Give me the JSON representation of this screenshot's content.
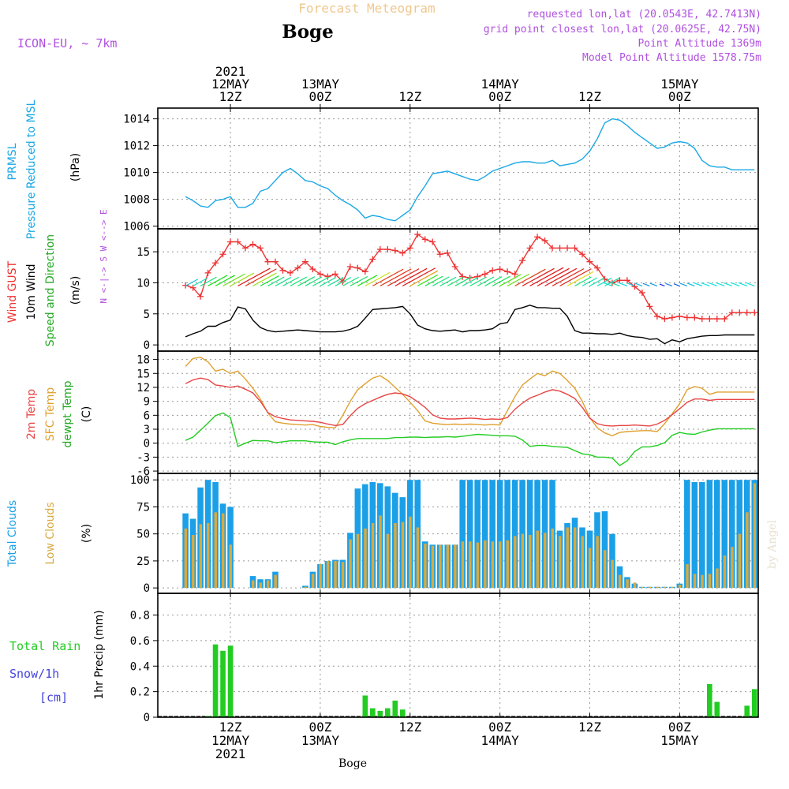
{
  "header": {
    "subtitle": "Forecast Meteogram",
    "station": "Boge",
    "model": "ICON-EU, ~ 7km",
    "requested": "requested lon,lat (20.0543E, 42.7413N)",
    "grid_point": "grid point closest lon,lat (20.0625E, 42.75N)",
    "point_altitude": "Point Altitude 1369m",
    "model_altitude": "Model Point Altitude 1578.75m",
    "footer_label": "Boge",
    "watermark": "by Angel"
  },
  "colors": {
    "pressure": "#1ba8e6",
    "gust": "#ee3333",
    "wind": "#000000",
    "temp2m": "#e84444",
    "sfc": "#e0a030",
    "dewpt": "#22cc22",
    "total_clouds": "#1ba0e8",
    "low_clouds": "#d8aa40",
    "rain": "#22cc22",
    "snow": "#4444dd",
    "purple": "#b050e0"
  },
  "chart_data": [
    {
      "type": "line",
      "name": "pressure",
      "ylabel": [
        "PRMSL",
        "Pressure Reduced to MSL",
        "(hPa)"
      ],
      "yticks": [
        1006,
        1008,
        1010,
        1012,
        1014
      ],
      "ylim": [
        1005.8,
        1014.8
      ],
      "x_hours": [
        0,
        1,
        2,
        3,
        4,
        5,
        6,
        7,
        8,
        9,
        10,
        11,
        12,
        13,
        14,
        15,
        16,
        17,
        18,
        19,
        20,
        21,
        22,
        23,
        24,
        25,
        26,
        27,
        28,
        29,
        30,
        31,
        32,
        33,
        34,
        35,
        36,
        37,
        38,
        39,
        40,
        41,
        42,
        43,
        44,
        45,
        46,
        47,
        48,
        49,
        50,
        51,
        52,
        53,
        54,
        55,
        56,
        57,
        58,
        59,
        60,
        61,
        62,
        63,
        64,
        65,
        66,
        67,
        68,
        69,
        70,
        71,
        72,
        73,
        74,
        75,
        76
      ],
      "values": [
        1008.2,
        1007.9,
        1007.5,
        1007.4,
        1007.9,
        1008.0,
        1008.2,
        1007.4,
        1007.4,
        1007.7,
        1008.6,
        1008.8,
        1009.4,
        1010.0,
        1010.3,
        1009.9,
        1009.4,
        1009.3,
        1009.0,
        1008.8,
        1008.3,
        1007.9,
        1007.6,
        1007.2,
        1006.6,
        1006.8,
        1006.7,
        1006.5,
        1006.4,
        1006.8,
        1007.2,
        1008.2,
        1009.0,
        1009.9,
        1010.0,
        1010.1,
        1009.9,
        1009.7,
        1009.5,
        1009.4,
        1009.7,
        1010.1,
        1010.3,
        1010.5,
        1010.7,
        1010.8,
        1010.8,
        1010.7,
        1010.7,
        1010.9,
        1010.5,
        1010.6,
        1010.7,
        1011.0,
        1011.6,
        1012.5,
        1013.7,
        1014.0,
        1013.9,
        1013.5,
        1013.0,
        1012.6,
        1012.2,
        1011.8,
        1011.9,
        1012.2,
        1012.3,
        1012.2,
        1011.8,
        1010.9,
        1010.5,
        1010.4,
        1010.4,
        1010.2,
        1010.2,
        1010.2,
        1010.2
      ]
    },
    {
      "type": "line",
      "name": "wind",
      "ylabel": [
        "Wind GUST",
        "10m Wind",
        "Speed and Direction",
        "(m/s)"
      ],
      "compass": "N <-|-> S  W <--> E",
      "yticks": [
        0,
        5,
        10,
        15
      ],
      "ylim": [
        -1,
        18.7
      ],
      "x_hours": [
        0,
        1,
        2,
        3,
        4,
        5,
        6,
        7,
        8,
        9,
        10,
        11,
        12,
        13,
        14,
        15,
        16,
        17,
        18,
        19,
        20,
        21,
        22,
        23,
        24,
        25,
        26,
        27,
        28,
        29,
        30,
        31,
        32,
        33,
        34,
        35,
        36,
        37,
        38,
        39,
        40,
        41,
        42,
        43,
        44,
        45,
        46,
        47,
        48,
        49,
        50,
        51,
        52,
        53,
        54,
        55,
        56,
        57,
        58,
        59,
        60,
        61,
        62,
        63,
        64,
        65,
        66,
        67,
        68,
        69,
        70,
        71,
        72,
        73,
        74,
        75,
        76
      ],
      "gust": [
        9.6,
        9.2,
        7.8,
        11.6,
        13.2,
        14.6,
        16.6,
        16.6,
        15.6,
        16.2,
        15.6,
        13.4,
        13.4,
        12.0,
        11.6,
        12.4,
        13.4,
        12.2,
        11.4,
        11.0,
        11.4,
        10.2,
        12.6,
        12.4,
        11.8,
        13.8,
        15.4,
        15.4,
        15.2,
        14.8,
        15.6,
        17.8,
        17.0,
        16.6,
        14.6,
        14.8,
        12.6,
        11.0,
        10.8,
        11.0,
        11.4,
        12.0,
        12.2,
        11.8,
        11.4,
        13.6,
        15.6,
        17.4,
        16.8,
        15.6,
        15.6,
        15.6,
        15.6,
        14.6,
        13.4,
        12.4,
        10.6,
        10.0,
        10.4,
        10.4,
        9.4,
        8.4,
        6.2,
        4.6,
        4.2,
        4.4,
        4.6,
        4.4,
        4.4,
        4.2,
        4.2,
        4.2,
        4.2,
        5.2,
        5.2,
        5.2,
        5.2
      ],
      "wind10m": [
        1.3,
        1.8,
        2.2,
        3.0,
        3.0,
        3.6,
        4.0,
        6.1,
        5.8,
        4.0,
        2.8,
        2.3,
        2.1,
        2.2,
        2.3,
        2.4,
        2.3,
        2.2,
        2.1,
        2.1,
        2.1,
        2.2,
        2.5,
        3.0,
        4.3,
        5.7,
        5.8,
        5.9,
        6.0,
        6.2,
        5.0,
        3.2,
        2.6,
        2.3,
        2.2,
        2.3,
        2.4,
        2.1,
        2.3,
        2.3,
        2.4,
        2.6,
        3.4,
        3.6,
        5.7,
        6.0,
        6.4,
        6.0,
        6.0,
        5.9,
        5.9,
        4.6,
        2.3,
        1.9,
        1.9,
        1.8,
        1.8,
        1.7,
        1.9,
        1.5,
        1.3,
        1.2,
        0.9,
        1.0,
        0.2,
        0.8,
        0.5,
        1.0,
        1.2,
        1.4,
        1.5,
        1.5,
        1.6,
        1.6,
        1.6,
        1.6,
        1.6
      ]
    },
    {
      "type": "line",
      "name": "temperature",
      "ylabel": [
        "2m Temp",
        "SFC Temp",
        "dewpt Temp",
        "(C)"
      ],
      "yticks": [
        -6,
        -3,
        0,
        3,
        6,
        9,
        12,
        15,
        18
      ],
      "ylim": [
        -6.5,
        19.8
      ],
      "x_hours": [
        0,
        1,
        2,
        3,
        4,
        5,
        6,
        7,
        8,
        9,
        10,
        11,
        12,
        13,
        14,
        15,
        16,
        17,
        18,
        19,
        20,
        21,
        22,
        23,
        24,
        25,
        26,
        27,
        28,
        29,
        30,
        31,
        32,
        33,
        34,
        35,
        36,
        37,
        38,
        39,
        40,
        41,
        42,
        43,
        44,
        45,
        46,
        47,
        48,
        49,
        50,
        51,
        52,
        53,
        54,
        55,
        56,
        57,
        58,
        59,
        60,
        61,
        62,
        63,
        64,
        65,
        66,
        67,
        68,
        69,
        70,
        71,
        72,
        73,
        74,
        75,
        76
      ],
      "temp2m": [
        12.8,
        13.6,
        14.0,
        13.7,
        12.5,
        12.3,
        12.0,
        12.3,
        11.6,
        10.8,
        9.0,
        6.6,
        5.7,
        5.3,
        5.0,
        4.9,
        4.8,
        4.7,
        4.5,
        4.1,
        3.8,
        4.0,
        5.9,
        7.5,
        8.5,
        9.2,
        9.9,
        10.5,
        10.8,
        10.6,
        10.0,
        8.9,
        7.7,
        6.1,
        5.4,
        5.2,
        5.2,
        5.3,
        5.4,
        5.3,
        5.1,
        5.2,
        5.1,
        5.5,
        7.3,
        8.6,
        9.7,
        10.3,
        11.0,
        11.5,
        11.2,
        10.5,
        9.6,
        7.7,
        5.4,
        4.2,
        3.8,
        3.7,
        3.8,
        3.8,
        3.9,
        3.8,
        3.7,
        4.1,
        4.9,
        6.1,
        7.4,
        8.8,
        9.5,
        9.5,
        9.2,
        9.4,
        9.4,
        9.4,
        9.4,
        9.4,
        9.4
      ],
      "sfc": [
        16.5,
        18.2,
        18.5,
        17.5,
        15.5,
        15.9,
        15.0,
        15.5,
        13.8,
        11.8,
        9.5,
        6.5,
        4.6,
        4.3,
        4.1,
        4.0,
        3.9,
        4.0,
        3.6,
        3.4,
        3.3,
        6.0,
        9.0,
        11.5,
        12.8,
        14.0,
        14.5,
        13.5,
        12.0,
        10.5,
        8.8,
        7.0,
        4.8,
        4.3,
        4.1,
        4.0,
        4.1,
        4.0,
        4.1,
        4.0,
        3.9,
        4.0,
        3.9,
        7.0,
        10.0,
        12.5,
        13.8,
        15.0,
        14.5,
        15.5,
        15.0,
        13.5,
        11.8,
        9.0,
        5.5,
        3.3,
        2.2,
        1.6,
        2.3,
        2.5,
        2.6,
        2.7,
        2.7,
        2.5,
        4.2,
        6.3,
        8.5,
        11.5,
        12.2,
        11.8,
        10.5,
        11.0,
        11.0,
        11.0,
        11.0,
        11.0,
        11.0
      ],
      "dewpt": [
        0.6,
        1.3,
        2.8,
        4.3,
        5.9,
        6.5,
        5.5,
        -0.7,
        0.0,
        0.6,
        0.5,
        0.5,
        0.1,
        0.3,
        0.5,
        0.5,
        0.5,
        0.3,
        0.2,
        0.2,
        -0.3,
        0.3,
        0.7,
        1.0,
        1.0,
        1.0,
        1.0,
        1.0,
        1.2,
        1.2,
        1.3,
        1.3,
        1.2,
        1.3,
        1.3,
        1.4,
        1.3,
        1.5,
        1.7,
        1.9,
        1.8,
        1.7,
        1.6,
        1.6,
        1.5,
        0.7,
        -0.7,
        -0.5,
        -0.5,
        -0.7,
        -0.8,
        -0.9,
        -1.6,
        -2.3,
        -2.5,
        -3.0,
        -3.0,
        -3.2,
        -4.8,
        -3.8,
        -1.8,
        -0.8,
        -0.8,
        -0.5,
        0.1,
        1.7,
        2.3,
        2.0,
        1.9,
        2.4,
        2.8,
        3.1,
        3.1,
        3.1,
        3.1,
        3.1,
        3.1
      ]
    },
    {
      "type": "bar",
      "name": "clouds",
      "ylabel": [
        "Total Clouds",
        "Low Clouds",
        "(%)"
      ],
      "yticks": [
        0,
        25,
        50,
        75,
        100
      ],
      "ylim": [
        -5,
        106
      ],
      "x_hours": [
        0,
        1,
        2,
        3,
        4,
        5,
        6,
        7,
        8,
        9,
        10,
        11,
        12,
        13,
        14,
        15,
        16,
        17,
        18,
        19,
        20,
        21,
        22,
        23,
        24,
        25,
        26,
        27,
        28,
        29,
        30,
        31,
        32,
        33,
        34,
        35,
        36,
        37,
        38,
        39,
        40,
        41,
        42,
        43,
        44,
        45,
        46,
        47,
        48,
        49,
        50,
        51,
        52,
        53,
        54,
        55,
        56,
        57,
        58,
        59,
        60,
        61,
        62,
        63,
        64,
        65,
        66,
        67,
        68,
        69,
        70,
        71,
        72,
        73,
        74,
        75,
        76
      ],
      "total": [
        69,
        64,
        93,
        100,
        98,
        78,
        75,
        0,
        0,
        11,
        8,
        8,
        15,
        0,
        0,
        0,
        2,
        15,
        22,
        25,
        26,
        26,
        51,
        92,
        96,
        98,
        97,
        94,
        88,
        84,
        100,
        100,
        43,
        40,
        40,
        40,
        40,
        100,
        100,
        100,
        100,
        100,
        100,
        100,
        100,
        100,
        100,
        100,
        100,
        100,
        53,
        60,
        65,
        56,
        53,
        70,
        71,
        50,
        20,
        10,
        4,
        1,
        1,
        1,
        1,
        1,
        4,
        100,
        98,
        98,
        100,
        100,
        100,
        100,
        100,
        100,
        100
      ],
      "low": [
        55,
        49,
        59,
        60,
        70,
        69,
        40,
        0,
        0,
        7,
        5,
        7,
        12,
        0,
        0,
        0,
        1,
        13,
        22,
        25,
        25,
        24,
        45,
        50,
        55,
        60,
        67,
        50,
        60,
        61,
        66,
        56,
        41,
        39,
        40,
        40,
        40,
        43,
        43,
        42,
        44,
        43,
        43,
        44,
        48,
        50,
        49,
        53,
        51,
        55,
        48,
        56,
        56,
        48,
        37,
        48,
        35,
        26,
        12,
        8,
        5,
        1,
        1,
        1,
        1,
        1,
        3,
        22,
        13,
        12,
        13,
        18,
        30,
        38,
        50,
        70,
        97
      ]
    },
    {
      "type": "bar",
      "name": "precipitation",
      "ylabel": [
        "1hr Precip (mm)"
      ],
      "legend": [
        "Total Rain",
        "Snow/1h",
        "[cm]"
      ],
      "yticks": [
        0,
        0.2,
        0.4,
        0.6,
        0.8
      ],
      "ylim": [
        0,
        0.97
      ],
      "x_hours": [
        3,
        4,
        5,
        6,
        24,
        25,
        26,
        27,
        28,
        29,
        70,
        71,
        75,
        76
      ],
      "rain": [
        0.01,
        0.57,
        0.52,
        0.56,
        0.17,
        0.07,
        0.05,
        0.07,
        0.13,
        0.06,
        0.26,
        0.12,
        0.09,
        0.22
      ]
    }
  ],
  "time_axis": {
    "top_labels": [
      {
        "hour": 6,
        "lines": [
          "2021",
          "12MAY",
          "12Z"
        ]
      },
      {
        "hour": 18,
        "lines": [
          "13MAY",
          "00Z"
        ]
      },
      {
        "hour": 30,
        "lines": [
          "12Z"
        ]
      },
      {
        "hour": 42,
        "lines": [
          "14MAY",
          "00Z"
        ]
      },
      {
        "hour": 54,
        "lines": [
          "12Z"
        ]
      },
      {
        "hour": 66,
        "lines": [
          "15MAY",
          "00Z"
        ]
      }
    ],
    "bottom_labels": [
      {
        "hour": 6,
        "lines": [
          "12Z",
          "12MAY",
          "2021"
        ]
      },
      {
        "hour": 18,
        "lines": [
          "00Z",
          "13MAY"
        ]
      },
      {
        "hour": 30,
        "lines": [
          "12Z"
        ]
      },
      {
        "hour": 42,
        "lines": [
          "00Z",
          "14MAY"
        ]
      },
      {
        "hour": 54,
        "lines": [
          "12Z"
        ]
      },
      {
        "hour": 66,
        "lines": [
          "00Z",
          "15MAY"
        ]
      }
    ]
  }
}
